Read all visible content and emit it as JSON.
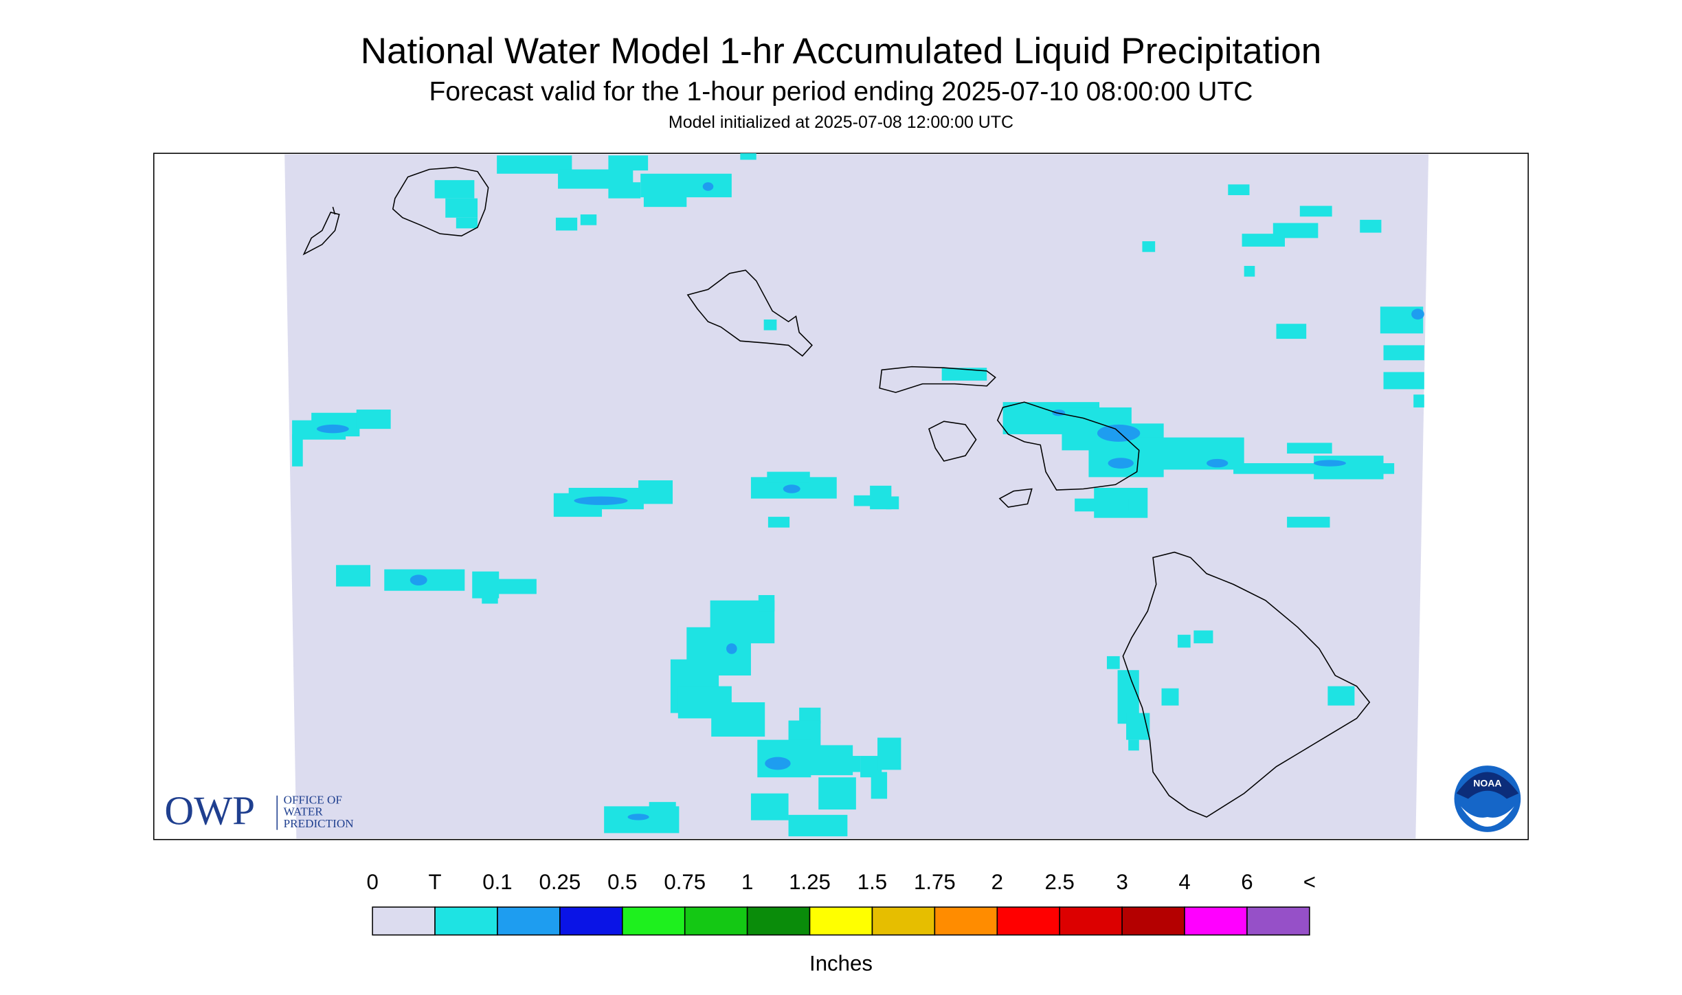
{
  "header": {
    "title": "National Water Model 1-hr Accumulated Liquid Precipitation",
    "subtitle": "Forecast valid for the 1-hour period ending 2025-07-10 08:00:00 UTC",
    "initialized": "Model initialized at 2025-07-08 12:00:00 UTC"
  },
  "legend": {
    "labels": [
      "0",
      "T",
      "0.1",
      "0.25",
      "0.5",
      "0.75",
      "1",
      "1.25",
      "1.5",
      "1.75",
      "2",
      "2.5",
      "3",
      "4",
      "6",
      "<"
    ],
    "colors": [
      "#dcdcef",
      "#1ee3e3",
      "#1e9df0",
      "#0a14e6",
      "#1ef01e",
      "#14c814",
      "#0a8c0a",
      "#ffff00",
      "#e6be00",
      "#ff8c00",
      "#ff0000",
      "#dc0000",
      "#b40000",
      "#ff00ff",
      "#9650c8"
    ],
    "unit": "Inches"
  },
  "logos": {
    "owp": "OWP",
    "owp_text": [
      "OFFICE OF",
      "WATER",
      "PREDICTION"
    ],
    "noaa": "NOAA"
  }
}
